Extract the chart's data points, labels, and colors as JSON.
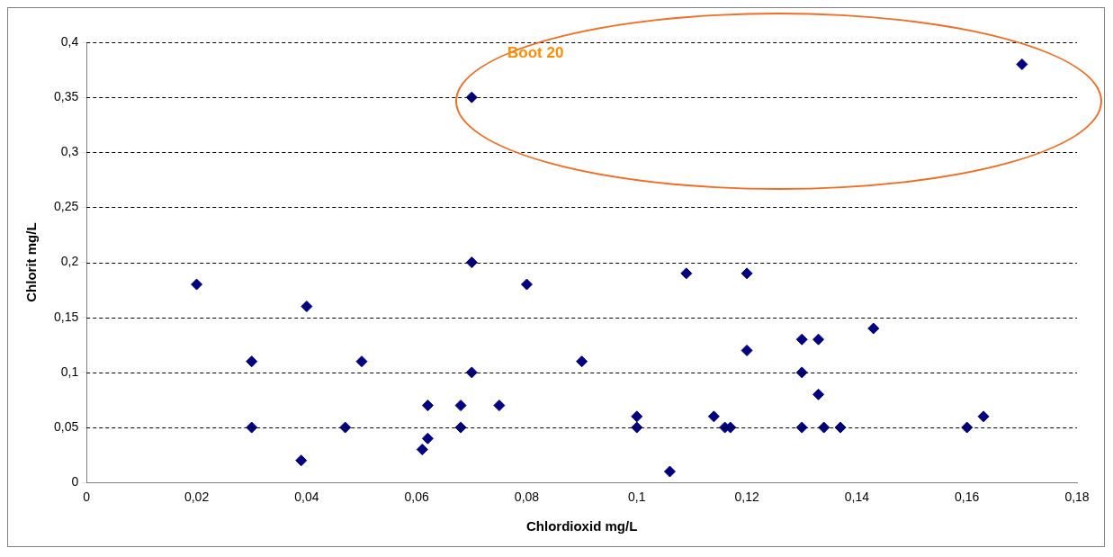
{
  "chart_data": {
    "type": "scatter",
    "xlabel": "Chlordioxid mg/L",
    "ylabel": "Chlorit mg/L",
    "annotations": [
      "Boot 20"
    ],
    "marker": "diamond",
    "grid": "y",
    "legend": false,
    "xlim": [
      0,
      0.18
    ],
    "xticks": [
      0,
      {
        "value": 0.02,
        "label": "0,02"
      },
      {
        "value": 0.04,
        "label": "0,04"
      },
      {
        "value": 0.06,
        "label": "0,06"
      },
      {
        "value": 0.08,
        "label": "0,08"
      },
      {
        "value": 0.1,
        "label": "0,1"
      },
      {
        "value": 0.12,
        "label": "0,12"
      },
      {
        "value": 0.14,
        "label": "0,14"
      },
      {
        "value": 0.16,
        "label": "0,16"
      },
      {
        "value": 0.18,
        "label": "0,18"
      }
    ],
    "ylim": [
      0,
      0.4
    ],
    "yticks": [
      0,
      {
        "value": 0.05,
        "label": "0,05"
      },
      {
        "value": 0.1,
        "label": "0,1"
      },
      {
        "value": 0.15,
        "label": "0,15"
      },
      {
        "value": 0.2,
        "label": "0,2"
      },
      {
        "value": 0.25,
        "label": "0,25"
      },
      {
        "value": 0.3,
        "label": "0,3"
      },
      {
        "value": 0.35,
        "label": "0,35"
      },
      {
        "value": 0.4,
        "label": "0,4"
      }
    ],
    "series": [
      {
        "color": "#000080",
        "x": [
          0.02,
          0.03,
          0.03,
          0.04,
          0.039,
          0.05,
          0.047,
          0.061,
          0.062,
          0.062,
          0.068,
          0.068,
          0.07,
          0.07,
          0.07,
          0.075,
          0.08,
          0.09,
          0.1,
          0.1,
          0.106,
          0.109,
          0.114,
          0.116,
          0.117,
          0.12,
          0.12,
          0.13,
          0.13,
          0.13,
          0.133,
          0.133,
          0.134,
          0.137,
          0.143,
          0.16,
          0.163,
          0.17
        ],
        "values": [
          0.18,
          0.11,
          0.05,
          0.16,
          0.02,
          0.11,
          0.05,
          0.03,
          0.07,
          0.04,
          0.07,
          0.05,
          0.35,
          0.2,
          0.1,
          0.07,
          0.18,
          0.11,
          0.06,
          0.05,
          0.01,
          0.19,
          0.06,
          0.05,
          0.05,
          0.19,
          0.12,
          0.13,
          0.1,
          0.05,
          0.13,
          0.08,
          0.05,
          0.05,
          0.14,
          0.05,
          0.06,
          0.38
        ]
      }
    ]
  }
}
